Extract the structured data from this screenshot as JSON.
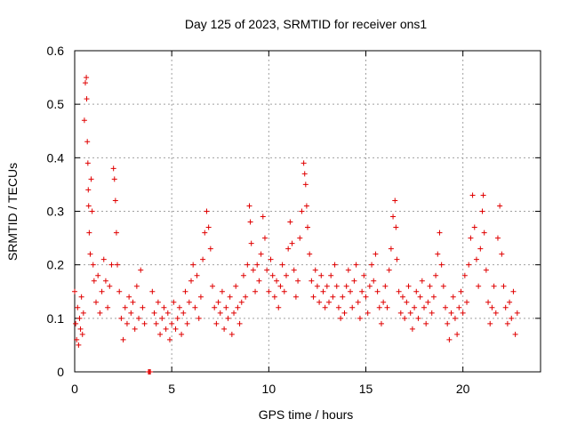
{
  "chart_data": {
    "type": "scatter",
    "title": "Day 125 of 2023, SRMTID for receiver ons1",
    "xlabel": "GPS time / hours",
    "ylabel": "SRMTID / TECUs",
    "xlim": [
      0,
      24
    ],
    "ylim": [
      0,
      0.6
    ],
    "xticks": [
      0,
      5,
      10,
      15,
      20
    ],
    "xtick_labels": [
      "0",
      "5",
      "10",
      "15",
      "20"
    ],
    "yticks": [
      0,
      0.1,
      0.2,
      0.3,
      0.4,
      0.5,
      0.6
    ],
    "ytick_labels": [
      "0",
      "0.1",
      "0.2",
      "0.3",
      "0.4",
      "0.5",
      "0.6"
    ],
    "grid": true,
    "marker": "+",
    "series": [
      {
        "name": "SRMTID",
        "color": "#e00000",
        "points": [
          [
            0.0,
            0.15
          ],
          [
            0.05,
            0.09
          ],
          [
            0.1,
            0.06
          ],
          [
            0.15,
            0.12
          ],
          [
            0.2,
            0.05
          ],
          [
            0.25,
            0.1
          ],
          [
            0.3,
            0.08
          ],
          [
            0.35,
            0.14
          ],
          [
            0.4,
            0.07
          ],
          [
            0.45,
            0.11
          ],
          [
            0.5,
            0.47
          ],
          [
            0.55,
            0.54
          ],
          [
            0.6,
            0.55
          ],
          [
            0.62,
            0.51
          ],
          [
            0.65,
            0.43
          ],
          [
            0.68,
            0.39
          ],
          [
            0.7,
            0.34
          ],
          [
            0.72,
            0.31
          ],
          [
            0.75,
            0.26
          ],
          [
            0.8,
            0.22
          ],
          [
            0.85,
            0.36
          ],
          [
            0.9,
            0.3
          ],
          [
            0.95,
            0.2
          ],
          [
            1.0,
            0.17
          ],
          [
            1.1,
            0.13
          ],
          [
            1.2,
            0.18
          ],
          [
            1.3,
            0.11
          ],
          [
            1.4,
            0.15
          ],
          [
            1.5,
            0.21
          ],
          [
            1.6,
            0.17
          ],
          [
            1.7,
            0.12
          ],
          [
            1.8,
            0.16
          ],
          [
            1.9,
            0.2
          ],
          [
            2.0,
            0.38
          ],
          [
            2.05,
            0.36
          ],
          [
            2.1,
            0.32
          ],
          [
            2.15,
            0.26
          ],
          [
            2.2,
            0.2
          ],
          [
            2.3,
            0.15
          ],
          [
            2.4,
            0.1
          ],
          [
            2.5,
            0.06
          ],
          [
            2.6,
            0.12
          ],
          [
            2.7,
            0.09
          ],
          [
            2.8,
            0.14
          ],
          [
            2.9,
            0.11
          ],
          [
            3.0,
            0.13
          ],
          [
            3.1,
            0.08
          ],
          [
            3.2,
            0.16
          ],
          [
            3.3,
            0.1
          ],
          [
            3.4,
            0.19
          ],
          [
            3.5,
            0.12
          ],
          [
            3.6,
            0.09
          ],
          [
            3.8,
            0.0
          ],
          [
            3.85,
            0.0
          ],
          [
            3.9,
            0.0
          ],
          [
            4.0,
            0.15
          ],
          [
            4.1,
            0.11
          ],
          [
            4.2,
            0.09
          ],
          [
            4.3,
            0.13
          ],
          [
            4.4,
            0.07
          ],
          [
            4.5,
            0.1
          ],
          [
            4.6,
            0.12
          ],
          [
            4.7,
            0.08
          ],
          [
            4.8,
            0.11
          ],
          [
            4.9,
            0.06
          ],
          [
            5.0,
            0.09
          ],
          [
            5.1,
            0.13
          ],
          [
            5.2,
            0.08
          ],
          [
            5.3,
            0.1
          ],
          [
            5.4,
            0.12
          ],
          [
            5.5,
            0.07
          ],
          [
            5.6,
            0.11
          ],
          [
            5.7,
            0.15
          ],
          [
            5.8,
            0.09
          ],
          [
            5.9,
            0.13
          ],
          [
            6.0,
            0.17
          ],
          [
            6.1,
            0.2
          ],
          [
            6.2,
            0.12
          ],
          [
            6.3,
            0.18
          ],
          [
            6.4,
            0.1
          ],
          [
            6.5,
            0.14
          ],
          [
            6.6,
            0.21
          ],
          [
            6.7,
            0.26
          ],
          [
            6.8,
            0.3
          ],
          [
            6.9,
            0.27
          ],
          [
            7.0,
            0.23
          ],
          [
            7.1,
            0.16
          ],
          [
            7.2,
            0.12
          ],
          [
            7.3,
            0.09
          ],
          [
            7.4,
            0.13
          ],
          [
            7.5,
            0.11
          ],
          [
            7.6,
            0.15
          ],
          [
            7.7,
            0.08
          ],
          [
            7.8,
            0.12
          ],
          [
            7.9,
            0.1
          ],
          [
            8.0,
            0.14
          ],
          [
            8.1,
            0.07
          ],
          [
            8.2,
            0.11
          ],
          [
            8.3,
            0.16
          ],
          [
            8.4,
            0.12
          ],
          [
            8.5,
            0.09
          ],
          [
            8.6,
            0.13
          ],
          [
            8.7,
            0.18
          ],
          [
            8.8,
            0.14
          ],
          [
            8.9,
            0.2
          ],
          [
            9.0,
            0.31
          ],
          [
            9.05,
            0.28
          ],
          [
            9.1,
            0.24
          ],
          [
            9.2,
            0.19
          ],
          [
            9.3,
            0.15
          ],
          [
            9.4,
            0.2
          ],
          [
            9.5,
            0.17
          ],
          [
            9.6,
            0.22
          ],
          [
            9.7,
            0.29
          ],
          [
            9.8,
            0.25
          ],
          [
            9.9,
            0.19
          ],
          [
            10.0,
            0.15
          ],
          [
            10.1,
            0.21
          ],
          [
            10.2,
            0.18
          ],
          [
            10.3,
            0.14
          ],
          [
            10.4,
            0.17
          ],
          [
            10.5,
            0.12
          ],
          [
            10.6,
            0.16
          ],
          [
            10.7,
            0.2
          ],
          [
            10.8,
            0.15
          ],
          [
            10.9,
            0.18
          ],
          [
            11.0,
            0.23
          ],
          [
            11.1,
            0.28
          ],
          [
            11.2,
            0.24
          ],
          [
            11.3,
            0.19
          ],
          [
            11.4,
            0.14
          ],
          [
            11.5,
            0.17
          ],
          [
            11.6,
            0.25
          ],
          [
            11.7,
            0.3
          ],
          [
            11.8,
            0.39
          ],
          [
            11.85,
            0.37
          ],
          [
            11.9,
            0.35
          ],
          [
            11.95,
            0.31
          ],
          [
            12.0,
            0.27
          ],
          [
            12.1,
            0.22
          ],
          [
            12.2,
            0.17
          ],
          [
            12.3,
            0.14
          ],
          [
            12.4,
            0.19
          ],
          [
            12.5,
            0.16
          ],
          [
            12.6,
            0.13
          ],
          [
            12.7,
            0.18
          ],
          [
            12.8,
            0.15
          ],
          [
            12.9,
            0.12
          ],
          [
            13.0,
            0.16
          ],
          [
            13.1,
            0.13
          ],
          [
            13.2,
            0.18
          ],
          [
            13.3,
            0.14
          ],
          [
            13.4,
            0.2
          ],
          [
            13.5,
            0.16
          ],
          [
            13.6,
            0.12
          ],
          [
            13.7,
            0.1
          ],
          [
            13.8,
            0.14
          ],
          [
            13.9,
            0.11
          ],
          [
            14.0,
            0.16
          ],
          [
            14.1,
            0.19
          ],
          [
            14.2,
            0.15
          ],
          [
            14.3,
            0.12
          ],
          [
            14.4,
            0.17
          ],
          [
            14.5,
            0.2
          ],
          [
            14.6,
            0.13
          ],
          [
            14.7,
            0.1
          ],
          [
            14.8,
            0.15
          ],
          [
            14.9,
            0.18
          ],
          [
            15.0,
            0.14
          ],
          [
            15.1,
            0.11
          ],
          [
            15.2,
            0.16
          ],
          [
            15.3,
            0.2
          ],
          [
            15.4,
            0.17
          ],
          [
            15.5,
            0.22
          ],
          [
            15.6,
            0.15
          ],
          [
            15.7,
            0.12
          ],
          [
            15.8,
            0.09
          ],
          [
            15.9,
            0.13
          ],
          [
            16.0,
            0.16
          ],
          [
            16.1,
            0.12
          ],
          [
            16.2,
            0.19
          ],
          [
            16.3,
            0.23
          ],
          [
            16.4,
            0.29
          ],
          [
            16.5,
            0.32
          ],
          [
            16.55,
            0.27
          ],
          [
            16.6,
            0.21
          ],
          [
            16.7,
            0.15
          ],
          [
            16.8,
            0.11
          ],
          [
            16.9,
            0.14
          ],
          [
            17.0,
            0.1
          ],
          [
            17.1,
            0.13
          ],
          [
            17.2,
            0.16
          ],
          [
            17.3,
            0.11
          ],
          [
            17.4,
            0.08
          ],
          [
            17.5,
            0.12
          ],
          [
            17.6,
            0.15
          ],
          [
            17.7,
            0.1
          ],
          [
            17.8,
            0.14
          ],
          [
            17.9,
            0.17
          ],
          [
            18.0,
            0.12
          ],
          [
            18.1,
            0.09
          ],
          [
            18.2,
            0.13
          ],
          [
            18.3,
            0.16
          ],
          [
            18.4,
            0.11
          ],
          [
            18.5,
            0.14
          ],
          [
            18.6,
            0.18
          ],
          [
            18.7,
            0.22
          ],
          [
            18.8,
            0.26
          ],
          [
            18.9,
            0.2
          ],
          [
            19.0,
            0.16
          ],
          [
            19.1,
            0.12
          ],
          [
            19.2,
            0.09
          ],
          [
            19.3,
            0.06
          ],
          [
            19.4,
            0.11
          ],
          [
            19.5,
            0.14
          ],
          [
            19.6,
            0.1
          ],
          [
            19.7,
            0.07
          ],
          [
            19.8,
            0.12
          ],
          [
            19.9,
            0.15
          ],
          [
            20.0,
            0.11
          ],
          [
            20.1,
            0.18
          ],
          [
            20.2,
            0.13
          ],
          [
            20.3,
            0.2
          ],
          [
            20.4,
            0.25
          ],
          [
            20.5,
            0.33
          ],
          [
            20.6,
            0.27
          ],
          [
            20.7,
            0.21
          ],
          [
            20.8,
            0.16
          ],
          [
            20.9,
            0.23
          ],
          [
            21.0,
            0.3
          ],
          [
            21.05,
            0.33
          ],
          [
            21.1,
            0.26
          ],
          [
            21.2,
            0.19
          ],
          [
            21.3,
            0.13
          ],
          [
            21.4,
            0.09
          ],
          [
            21.5,
            0.12
          ],
          [
            21.6,
            0.16
          ],
          [
            21.7,
            0.11
          ],
          [
            21.8,
            0.25
          ],
          [
            21.9,
            0.31
          ],
          [
            22.0,
            0.22
          ],
          [
            22.1,
            0.16
          ],
          [
            22.2,
            0.12
          ],
          [
            22.3,
            0.09
          ],
          [
            22.4,
            0.13
          ],
          [
            22.5,
            0.1
          ],
          [
            22.6,
            0.15
          ],
          [
            22.7,
            0.07
          ],
          [
            22.8,
            0.11
          ]
        ]
      }
    ]
  }
}
